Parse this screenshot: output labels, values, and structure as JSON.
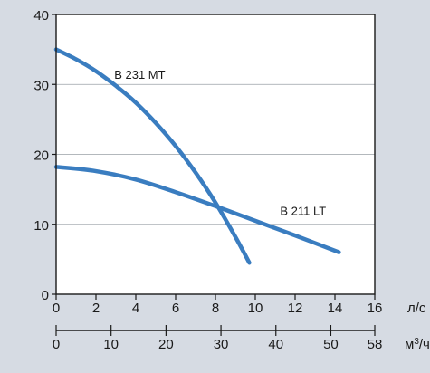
{
  "colors": {
    "background": "#d6dbe3",
    "plot_background": "#ffffff",
    "curve": "#3a7dc0",
    "grid": "#9aa0a6",
    "axis": "#1a1a1a"
  },
  "chart_data": {
    "type": "line",
    "title": "",
    "grid": "horizontal",
    "x_axis": {
      "unit_label": "л/с",
      "range": [
        0,
        16
      ],
      "ticks": [
        0,
        2,
        4,
        6,
        8,
        10,
        12,
        14,
        16
      ]
    },
    "x2_axis": {
      "unit_label_base": "м",
      "unit_label_sup": "3",
      "unit_label_tail": "/ч",
      "range": [
        0,
        58
      ],
      "ticks": [
        0,
        10,
        20,
        30,
        40,
        50,
        58
      ]
    },
    "y_axis": {
      "range": [
        0,
        40
      ],
      "ticks": [
        0,
        10,
        20,
        30,
        40
      ]
    },
    "series": [
      {
        "name": "B 231 MT",
        "x": [
          0,
          1,
          2,
          3,
          4,
          5,
          6,
          7,
          8,
          9,
          9.7
        ],
        "y": [
          35,
          33.6,
          31.9,
          29.8,
          27.4,
          24.5,
          21.2,
          17.4,
          13.1,
          8.2,
          4.5
        ]
      },
      {
        "name": "B 211 LT",
        "x": [
          0,
          2,
          4,
          6,
          8,
          10,
          12,
          14.2
        ],
        "y": [
          18.2,
          17.6,
          16.4,
          14.6,
          12.6,
          10.5,
          8.4,
          6.0
        ]
      }
    ]
  }
}
